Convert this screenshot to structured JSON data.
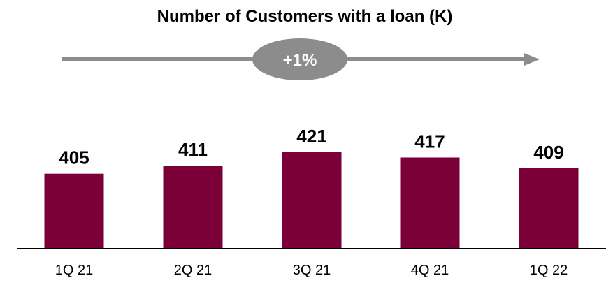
{
  "chart_data": {
    "type": "bar",
    "title": "Number of Customers with a loan (K)",
    "categories": [
      "1Q 21",
      "2Q 21",
      "3Q 21",
      "4Q 21",
      "1Q 22"
    ],
    "values": [
      405,
      411,
      421,
      417,
      409
    ],
    "bar_color": "#7b0038",
    "growth_label": "+1%",
    "arrow_color": "#8c8c8c",
    "xlabel": "",
    "ylabel": "",
    "ylim": [
      350,
      430
    ],
    "grid": false,
    "legend": "none"
  }
}
